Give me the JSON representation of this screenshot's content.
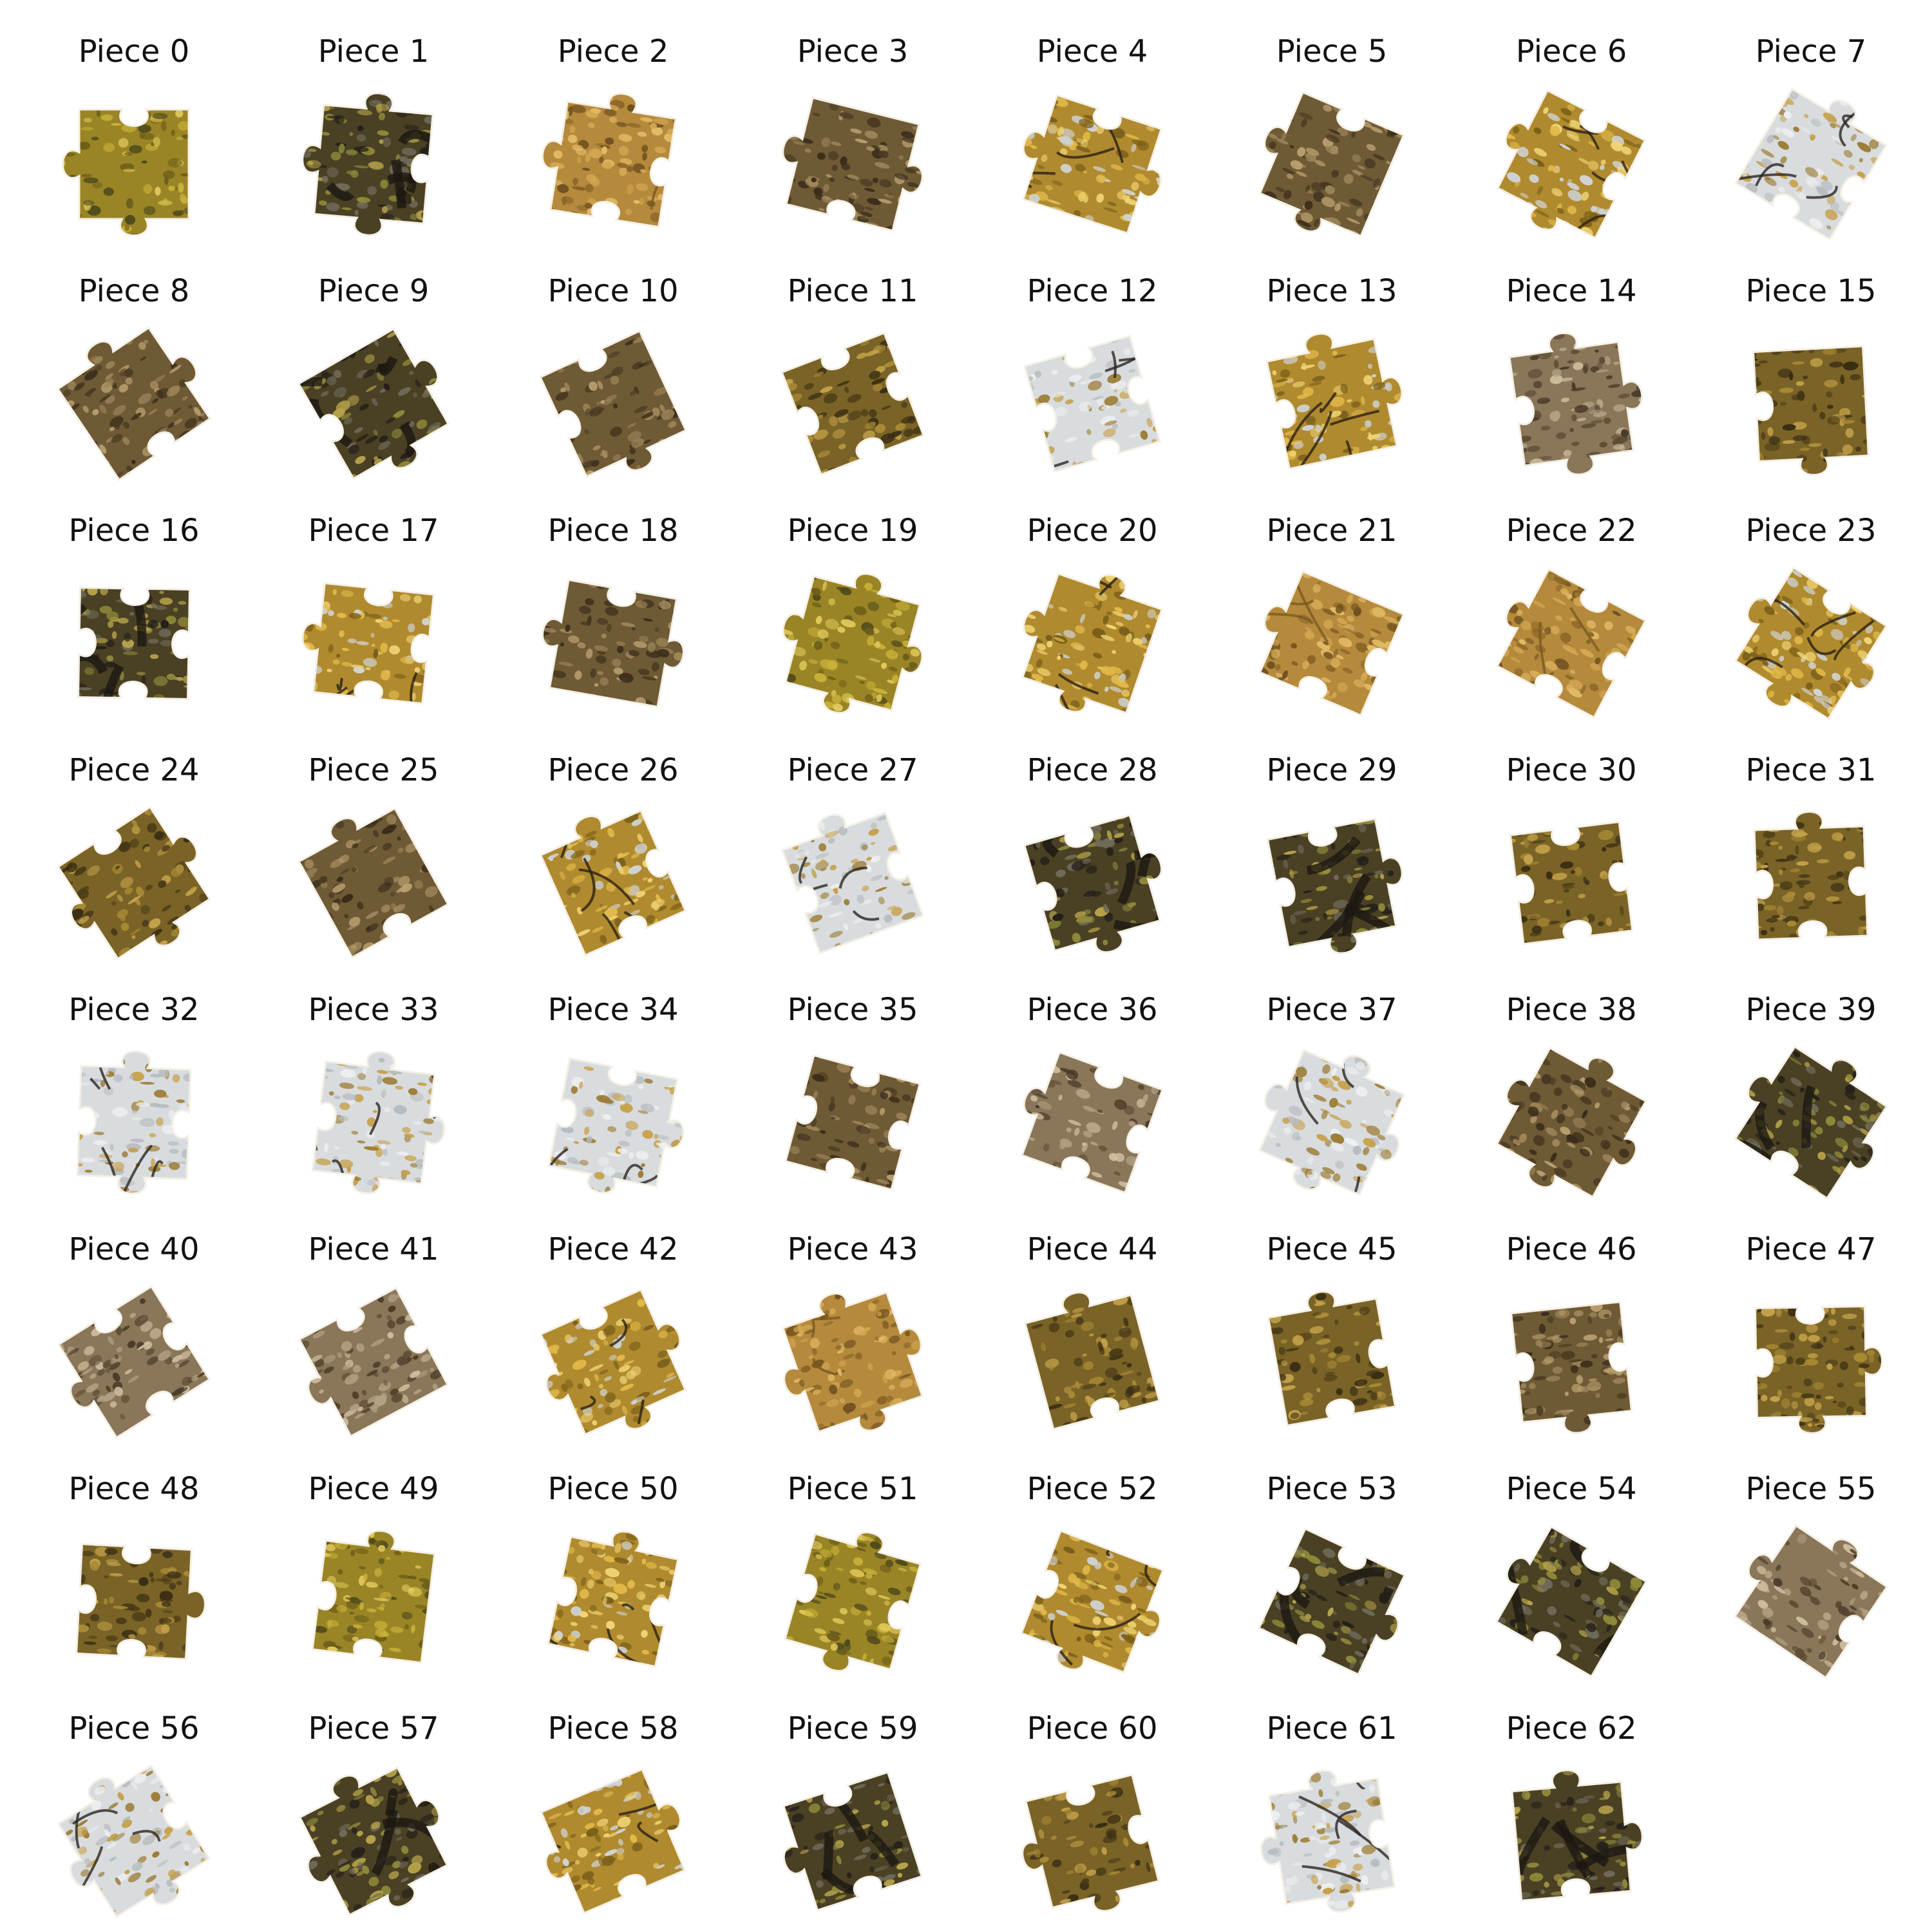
{
  "puzzle": {
    "columns": 8,
    "colors": {
      "background": "#ffffff",
      "label": "#111111",
      "edge": "#f4f0e6"
    },
    "pieces": [
      {
        "label": "Piece 0",
        "kind": "foliage"
      },
      {
        "label": "Piece 1",
        "kind": "trunk"
      },
      {
        "label": "Piece 2",
        "kind": "bark"
      },
      {
        "label": "Piece 3",
        "kind": "ground"
      },
      {
        "label": "Piece 4",
        "kind": "canopy"
      },
      {
        "label": "Piece 5",
        "kind": "ground"
      },
      {
        "label": "Piece 6",
        "kind": "canopy"
      },
      {
        "label": "Piece 7",
        "kind": "sky"
      },
      {
        "label": "Piece 8",
        "kind": "ground"
      },
      {
        "label": "Piece 9",
        "kind": "trunk"
      },
      {
        "label": "Piece 10",
        "kind": "ground"
      },
      {
        "label": "Piece 11",
        "kind": "leaves"
      },
      {
        "label": "Piece 12",
        "kind": "sky"
      },
      {
        "label": "Piece 13",
        "kind": "canopy"
      },
      {
        "label": "Piece 14",
        "kind": "gravel"
      },
      {
        "label": "Piece 15",
        "kind": "leaves"
      },
      {
        "label": "Piece 16",
        "kind": "trunk"
      },
      {
        "label": "Piece 17",
        "kind": "canopy"
      },
      {
        "label": "Piece 18",
        "kind": "ground"
      },
      {
        "label": "Piece 19",
        "kind": "foliage"
      },
      {
        "label": "Piece 20",
        "kind": "canopy"
      },
      {
        "label": "Piece 21",
        "kind": "bark"
      },
      {
        "label": "Piece 22",
        "kind": "bark"
      },
      {
        "label": "Piece 23",
        "kind": "canopy"
      },
      {
        "label": "Piece 24",
        "kind": "leaves"
      },
      {
        "label": "Piece 25",
        "kind": "ground"
      },
      {
        "label": "Piece 26",
        "kind": "canopy"
      },
      {
        "label": "Piece 27",
        "kind": "sky"
      },
      {
        "label": "Piece 28",
        "kind": "trunk"
      },
      {
        "label": "Piece 29",
        "kind": "trunk"
      },
      {
        "label": "Piece 30",
        "kind": "leaves"
      },
      {
        "label": "Piece 31",
        "kind": "leaves"
      },
      {
        "label": "Piece 32",
        "kind": "sky"
      },
      {
        "label": "Piece 33",
        "kind": "sky"
      },
      {
        "label": "Piece 34",
        "kind": "sky"
      },
      {
        "label": "Piece 35",
        "kind": "ground"
      },
      {
        "label": "Piece 36",
        "kind": "gravel"
      },
      {
        "label": "Piece 37",
        "kind": "sky"
      },
      {
        "label": "Piece 38",
        "kind": "ground"
      },
      {
        "label": "Piece 39",
        "kind": "trunk"
      },
      {
        "label": "Piece 40",
        "kind": "gravel"
      },
      {
        "label": "Piece 41",
        "kind": "gravel"
      },
      {
        "label": "Piece 42",
        "kind": "canopy"
      },
      {
        "label": "Piece 43",
        "kind": "bark"
      },
      {
        "label": "Piece 44",
        "kind": "leaves"
      },
      {
        "label": "Piece 45",
        "kind": "leaves"
      },
      {
        "label": "Piece 46",
        "kind": "ground"
      },
      {
        "label": "Piece 47",
        "kind": "leaves"
      },
      {
        "label": "Piece 48",
        "kind": "leaves"
      },
      {
        "label": "Piece 49",
        "kind": "foliage"
      },
      {
        "label": "Piece 50",
        "kind": "canopy"
      },
      {
        "label": "Piece 51",
        "kind": "foliage"
      },
      {
        "label": "Piece 52",
        "kind": "canopy"
      },
      {
        "label": "Piece 53",
        "kind": "trunk"
      },
      {
        "label": "Piece 54",
        "kind": "trunk"
      },
      {
        "label": "Piece 55",
        "kind": "gravel"
      },
      {
        "label": "Piece 56",
        "kind": "sky"
      },
      {
        "label": "Piece 57",
        "kind": "trunk"
      },
      {
        "label": "Piece 58",
        "kind": "canopy"
      },
      {
        "label": "Piece 59",
        "kind": "trunk"
      },
      {
        "label": "Piece 60",
        "kind": "leaves"
      },
      {
        "label": "Piece 61",
        "kind": "sky"
      },
      {
        "label": "Piece 62",
        "kind": "trunk"
      }
    ]
  }
}
